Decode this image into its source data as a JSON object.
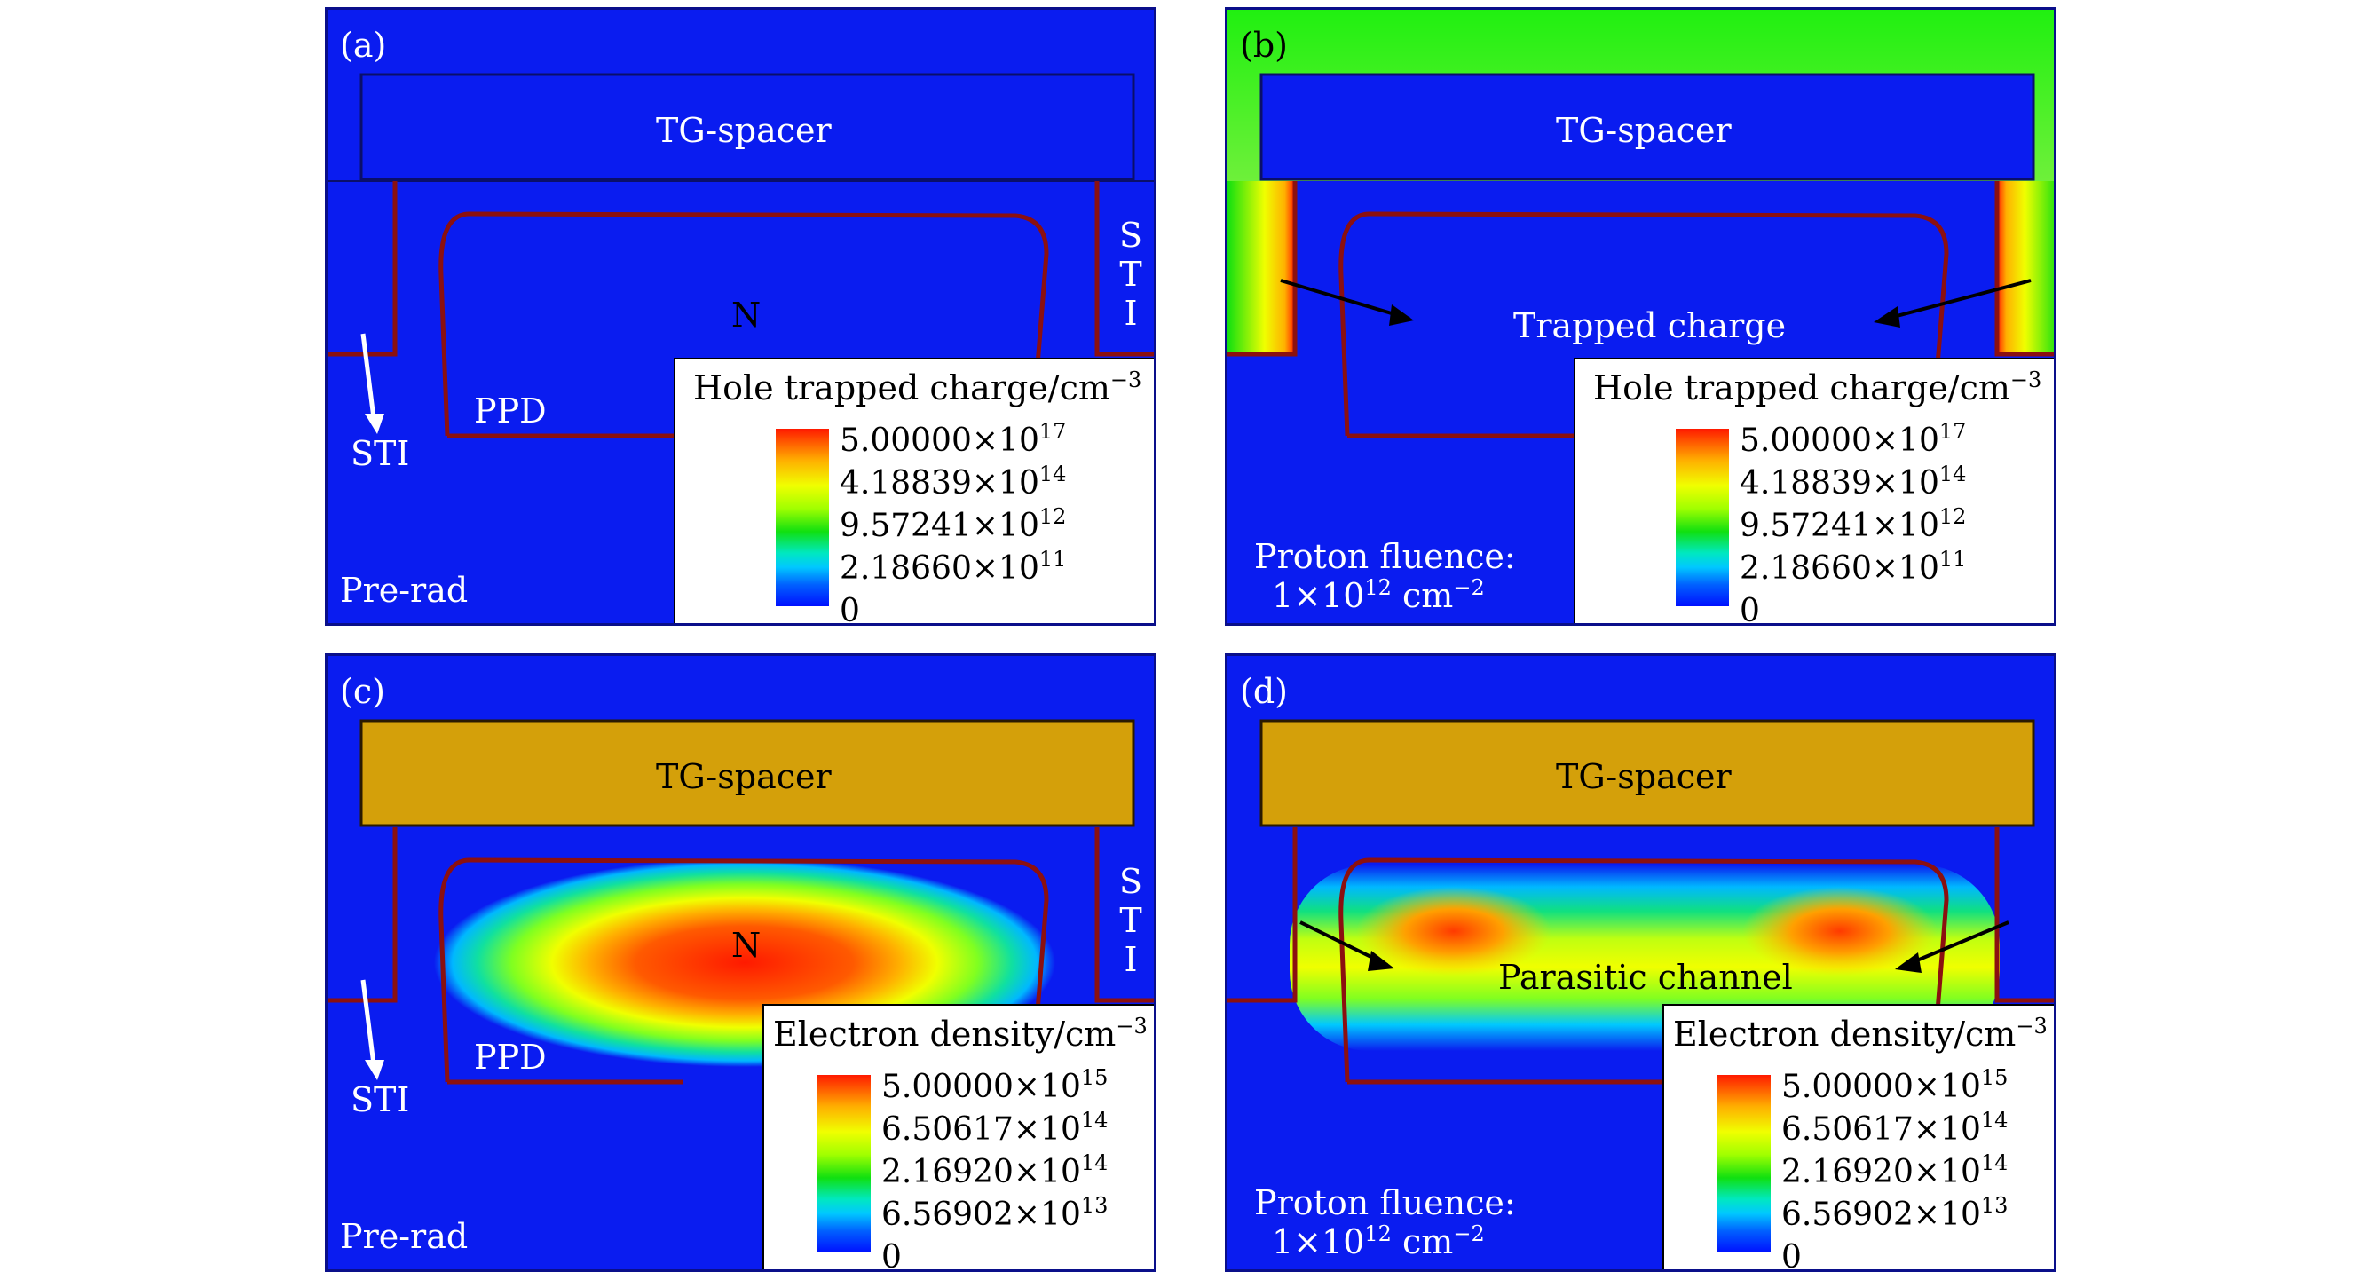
{
  "panels": [
    {
      "id": "a",
      "label": "(a)",
      "spacer_label": "TG-spacer",
      "region_label": "N",
      "ppd_label": "PPD",
      "sti_arrow_label": "STI",
      "sti_vertical": [
        "S",
        "T",
        "I"
      ],
      "condition": "Pre-rad",
      "legend": {
        "title": "Hole trapped charge/cm",
        "title_exp": "−3",
        "ticks": [
          {
            "mant": "5.00000×10",
            "exp": "17"
          },
          {
            "mant": "4.18839×10",
            "exp": "14"
          },
          {
            "mant": "9.57241×10",
            "exp": "12"
          },
          {
            "mant": "2.18660×10",
            "exp": "11"
          },
          {
            "mant": "0",
            "exp": ""
          }
        ]
      }
    },
    {
      "id": "b",
      "label": "(b)",
      "spacer_label": "TG-spacer",
      "annotation": "Trapped charge",
      "condition_line1": "Proton fluence:",
      "condition_line2_mant": "1×10",
      "condition_line2_exp": "12",
      "condition_line2_unit": " cm",
      "condition_line2_unit_exp": "−2",
      "legend": {
        "title": "Hole trapped charge/cm",
        "title_exp": "−3",
        "ticks": [
          {
            "mant": "5.00000×10",
            "exp": "17"
          },
          {
            "mant": "4.18839×10",
            "exp": "14"
          },
          {
            "mant": "9.57241×10",
            "exp": "12"
          },
          {
            "mant": "2.18660×10",
            "exp": "11"
          },
          {
            "mant": "0",
            "exp": ""
          }
        ]
      }
    },
    {
      "id": "c",
      "label": "(c)",
      "spacer_label": "TG-spacer",
      "region_label": "N",
      "ppd_label": "PPD",
      "sti_arrow_label": "STI",
      "sti_vertical": [
        "S",
        "T",
        "I"
      ],
      "condition": "Pre-rad",
      "legend": {
        "title": "Electron density/cm",
        "title_exp": "−3",
        "ticks": [
          {
            "mant": "5.00000×10",
            "exp": "15"
          },
          {
            "mant": "6.50617×10",
            "exp": "14"
          },
          {
            "mant": "2.16920×10",
            "exp": "14"
          },
          {
            "mant": "6.56902×10",
            "exp": "13"
          },
          {
            "mant": "0",
            "exp": ""
          }
        ]
      }
    },
    {
      "id": "d",
      "label": "(d)",
      "spacer_label": "TG-spacer",
      "annotation": "Parasitic channel",
      "condition_line1": "Proton fluence:",
      "condition_line2_mant": "1×10",
      "condition_line2_exp": "12",
      "condition_line2_unit": " cm",
      "condition_line2_unit_exp": "−2",
      "legend": {
        "title": "Electron density/cm",
        "title_exp": "−3",
        "ticks": [
          {
            "mant": "5.00000×10",
            "exp": "15"
          },
          {
            "mant": "6.50617×10",
            "exp": "14"
          },
          {
            "mant": "2.16920×10",
            "exp": "14"
          },
          {
            "mant": "6.56902×10",
            "exp": "13"
          },
          {
            "mant": "0",
            "exp": ""
          }
        ]
      }
    }
  ],
  "colors": {
    "background_blue": "#0a1cf0",
    "spacer_gold": "#d4a00a",
    "outline_red": "#8b1010",
    "fluence_green": "#20f010"
  }
}
